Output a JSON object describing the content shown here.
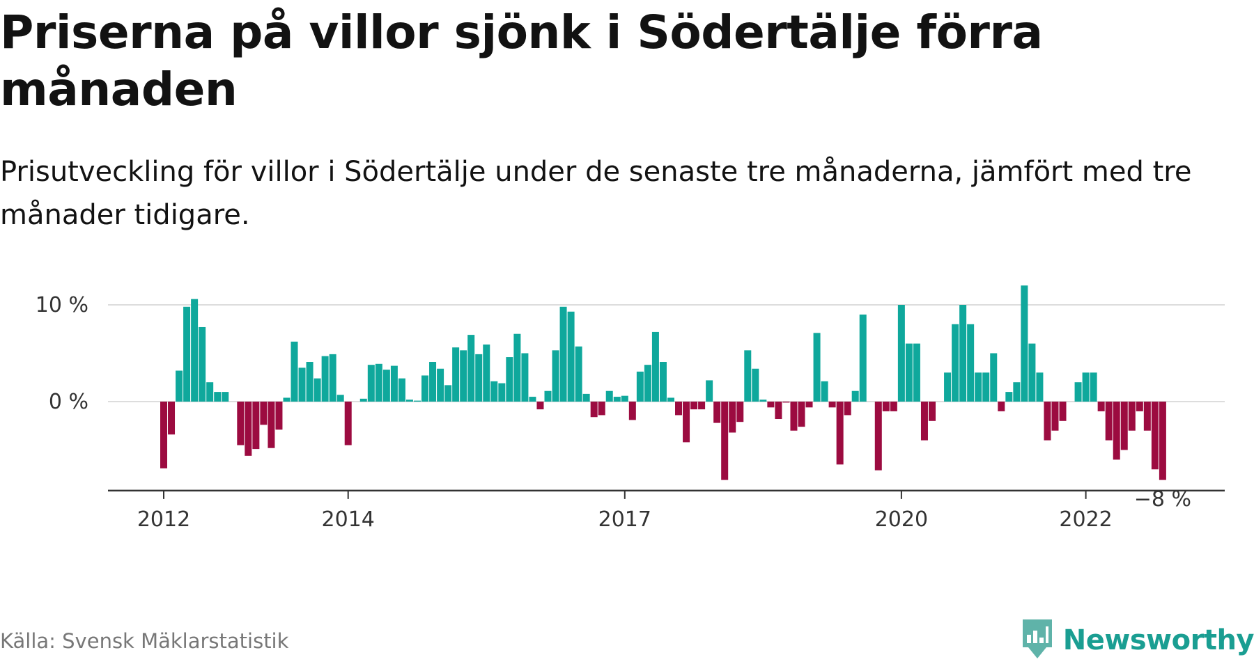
{
  "title": "Priserna på villor sjönk i Södertälje förra månaden",
  "subtitle": "Prisutveckling för villor i Södertälje under de senaste tre månaderna, jämfört med tre månader tidigare.",
  "source": "Källa: Svensk Mäklarstatistik",
  "brand": {
    "name": "Newsworthy",
    "color": "#1a9e92"
  },
  "colors": {
    "positive": "#0fa89c",
    "negative": "#9c0b40",
    "grid": "#dddddd",
    "axis": "#333333"
  },
  "chart_data": {
    "type": "bar",
    "title": "Priserna på villor sjönk i Södertälje förra månaden",
    "xlabel": "",
    "ylabel": "",
    "ylim": [
      -9.2,
      12
    ],
    "y_ticks": [
      0,
      10
    ],
    "y_tick_labels": [
      "0 %",
      "10 %"
    ],
    "x_ticks": [
      {
        "index": 0,
        "label": "2012"
      },
      {
        "index": 24,
        "label": "2014"
      },
      {
        "index": 60,
        "label": "2017"
      },
      {
        "index": 96,
        "label": "2020"
      },
      {
        "index": 120,
        "label": "2022"
      }
    ],
    "grid": true,
    "start": "2012-01",
    "frequency": "monthly",
    "last_value_label": "−8 %",
    "values": [
      -6.9,
      -3.4,
      3.2,
      9.8,
      10.6,
      7.7,
      2.0,
      1.0,
      1.0,
      0.0,
      -4.5,
      -5.6,
      -4.9,
      -2.4,
      -4.8,
      -2.9,
      0.4,
      6.2,
      3.5,
      4.1,
      2.4,
      4.7,
      4.9,
      0.7,
      -4.5,
      0.0,
      0.3,
      3.8,
      3.9,
      3.3,
      3.7,
      2.4,
      0.2,
      0.1,
      2.7,
      4.1,
      3.4,
      1.7,
      5.6,
      5.3,
      6.9,
      4.9,
      5.9,
      2.1,
      1.9,
      4.6,
      7.0,
      5.0,
      0.5,
      -0.8,
      1.1,
      5.3,
      9.8,
      9.3,
      5.7,
      0.8,
      -1.6,
      -1.4,
      1.1,
      0.5,
      0.6,
      -1.9,
      3.1,
      3.8,
      7.2,
      4.1,
      0.4,
      -1.4,
      -4.2,
      -0.8,
      -0.8,
      2.2,
      -2.2,
      -8.1,
      -3.2,
      -2.1,
      5.3,
      3.4,
      0.2,
      -0.6,
      -1.8,
      -0.1,
      -3.0,
      -2.6,
      -0.6,
      7.1,
      2.1,
      -0.6,
      -6.5,
      -1.4,
      1.1,
      9.0,
      0.0,
      -7.1,
      -1.0,
      -1.0,
      10.0,
      6.0,
      6.0,
      -4.0,
      -2.0,
      0.0,
      3.0,
      8.0,
      10.0,
      8.0,
      3.0,
      3.0,
      5.0,
      -1.0,
      1.0,
      2.0,
      12.0,
      6.0,
      3.0,
      -4.0,
      -3.0,
      -2.0,
      0.0,
      2.0,
      3.0,
      3.0,
      -1.0,
      -4.0,
      -6.0,
      -5.0,
      -3.0,
      -1.0,
      -3.0,
      -7.0,
      -8.1
    ]
  }
}
